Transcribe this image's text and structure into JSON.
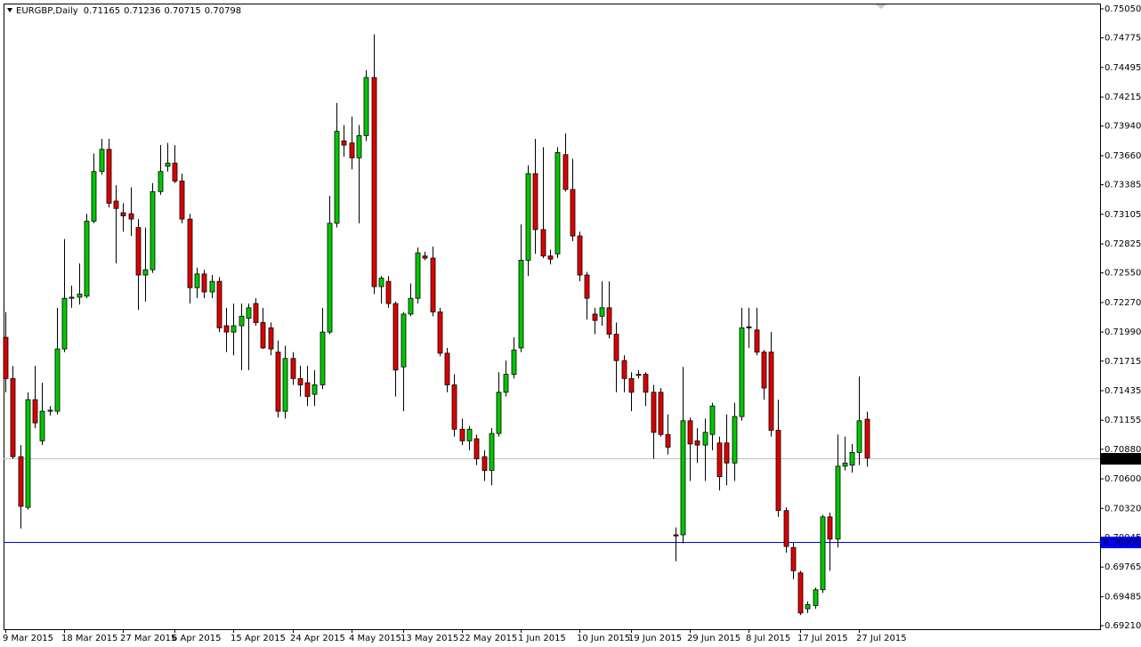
{
  "chart_data": {
    "type": "candlestick",
    "title": "EURGBP,Daily",
    "up_color": "#00c800",
    "down_color": "#dd0000",
    "categories": [
      "9 Mar 2015",
      null,
      null,
      null,
      null,
      null,
      null,
      null,
      "18 Mar 2015",
      null,
      null,
      null,
      null,
      null,
      null,
      null,
      "27 Mar 2015",
      null,
      null,
      null,
      null,
      null,
      null,
      "6 Apr 2015",
      null,
      null,
      null,
      null,
      null,
      null,
      null,
      "15 Apr 2015",
      null,
      null,
      null,
      null,
      null,
      null,
      null,
      "24 Apr 2015",
      null,
      null,
      null,
      null,
      null,
      null,
      null,
      "4 May 2015",
      null,
      null,
      null,
      null,
      null,
      null,
      "13 May 2015",
      null,
      null,
      null,
      null,
      null,
      null,
      null,
      "22 May 2015",
      null,
      null,
      null,
      null,
      null,
      null,
      null,
      "1 Jun 2015",
      null,
      null,
      null,
      null,
      null,
      null,
      null,
      "10 Jun 2015",
      null,
      null,
      null,
      null,
      null,
      null,
      "19 Jun 2015",
      null,
      null,
      null,
      null,
      null,
      null,
      null,
      "29 Jun 2015",
      null,
      null,
      null,
      null,
      null,
      null,
      null,
      "8 Jul 2015",
      null,
      null,
      null,
      null,
      null,
      null,
      "17 Jul 2015",
      null,
      null,
      null,
      null,
      null,
      null,
      null,
      "27 Jul 2015",
      null
    ],
    "open": [
      0.7194,
      0.7155,
      0.7081,
      0.7033,
      0.7135,
      0.7096,
      0.7124,
      0.7124,
      0.7183,
      0.7231,
      0.7232,
      0.7233,
      0.7304,
      0.7351,
      0.7372,
      0.7323,
      0.7312,
      0.7311,
      0.7298,
      0.7253,
      0.7258,
      0.7332,
      0.7356,
      0.7359,
      0.7342,
      0.7306,
      0.7241,
      0.7254,
      0.7237,
      0.7247,
      0.7205,
      0.7199,
      0.7205,
      0.7212,
      0.7226,
      0.7208,
      0.7203,
      0.718,
      0.7124,
      0.7174,
      0.7155,
      0.7151,
      0.714,
      0.7149,
      0.7199,
      0.7302,
      0.738,
      0.7378,
      0.7364,
      0.7385,
      0.744,
      0.7242,
      0.7247,
      0.7226,
      0.7166,
      0.7216,
      0.7231,
      0.7271,
      0.7269,
      0.7218,
      0.7179,
      0.7149,
      0.7107,
      0.7096,
      0.7098,
      0.7081,
      0.7068,
      0.7103,
      0.7142,
      0.7159,
      0.7184,
      0.7267,
      0.7349,
      0.7296,
      0.7271,
      0.7273,
      0.7367,
      0.7334,
      0.729,
      0.7253,
      0.7216,
      0.7214,
      0.7222,
      0.7197,
      0.7172,
      0.7155,
      0.7159,
      0.7159,
      0.7142,
      0.7142,
      0.7102,
      0.7007,
      0.7007,
      0.7115,
      0.7096,
      0.7092,
      0.7102,
      0.7094,
      0.7094,
      0.7075,
      0.7119,
      0.7204,
      0.7201,
      0.718,
      0.718,
      0.7106,
      0.703,
      0.6995,
      0.6971,
      0.6937,
      0.694,
      0.6955,
      0.7024,
      0.7003,
      0.7072,
      0.7073,
      0.7085,
      0.71165
    ],
    "high": [
      0.7218,
      0.7167,
      0.7092,
      0.7142,
      0.7167,
      0.7151,
      0.7129,
      0.7222,
      0.7287,
      0.7243,
      0.7264,
      0.7311,
      0.7368,
      0.7382,
      0.7382,
      0.7338,
      0.7321,
      0.7336,
      0.7306,
      0.7298,
      0.734,
      0.7376,
      0.7378,
      0.7376,
      0.7349,
      0.7311,
      0.726,
      0.7258,
      0.7253,
      0.7251,
      0.7222,
      0.7226,
      0.7226,
      0.7226,
      0.7231,
      0.7222,
      0.7208,
      0.7191,
      0.7186,
      0.718,
      0.7167,
      0.7167,
      0.7163,
      0.7222,
      0.7328,
      0.7416,
      0.7395,
      0.7403,
      0.7395,
      0.7447,
      0.7481,
      0.7252,
      0.7252,
      0.7228,
      0.7218,
      0.7245,
      0.7279,
      0.7275,
      0.728,
      0.7222,
      0.7184,
      0.7159,
      0.7117,
      0.711,
      0.7102,
      0.7087,
      0.7108,
      0.7161,
      0.7172,
      0.7194,
      0.7301,
      0.7357,
      0.7382,
      0.7374,
      0.7277,
      0.7374,
      0.7387,
      0.7363,
      0.7294,
      0.7256,
      0.7222,
      0.7247,
      0.7247,
      0.7208,
      0.7177,
      0.7161,
      0.7163,
      0.7161,
      0.7149,
      0.7146,
      0.7121,
      0.7014,
      0.7166,
      0.7118,
      0.7108,
      0.7117,
      0.7132,
      0.71,
      0.7121,
      0.7132,
      0.7222,
      0.7222,
      0.7222,
      0.7182,
      0.7199,
      0.7135,
      0.7033,
      0.7,
      0.6973,
      0.6944,
      0.6957,
      0.7026,
      0.7028,
      0.7102,
      0.71,
      0.7093,
      0.7157,
      0.71236
    ],
    "low": [
      0.7142,
      0.7079,
      0.7013,
      0.7031,
      0.7108,
      0.7092,
      0.712,
      0.7121,
      0.718,
      0.7222,
      0.7225,
      0.7231,
      0.7302,
      0.7348,
      0.7317,
      0.7264,
      0.7294,
      0.729,
      0.722,
      0.7228,
      0.7255,
      0.7329,
      0.7351,
      0.734,
      0.7302,
      0.7226,
      0.7231,
      0.7231,
      0.7231,
      0.7199,
      0.718,
      0.7177,
      0.7163,
      0.7163,
      0.7205,
      0.7183,
      0.7177,
      0.7118,
      0.7117,
      0.7149,
      0.7138,
      0.7129,
      0.7129,
      0.7145,
      0.7197,
      0.7298,
      0.7365,
      0.7353,
      0.7302,
      0.738,
      0.7235,
      0.7226,
      0.7222,
      0.7138,
      0.7124,
      0.7214,
      0.7226,
      0.7267,
      0.7214,
      0.7176,
      0.7142,
      0.71,
      0.7092,
      0.7087,
      0.7073,
      0.7058,
      0.7054,
      0.71,
      0.7138,
      0.7155,
      0.718,
      0.7252,
      0.7273,
      0.7269,
      0.7263,
      0.7269,
      0.7332,
      0.7285,
      0.7247,
      0.7211,
      0.7197,
      0.7205,
      0.7193,
      0.7142,
      0.7142,
      0.7124,
      0.7155,
      0.7129,
      0.7079,
      0.71,
      0.7083,
      0.6982,
      0.6999,
      0.7058,
      0.7075,
      0.7058,
      0.7087,
      0.7049,
      0.7054,
      0.7058,
      0.7115,
      0.7184,
      0.7177,
      0.7135,
      0.71,
      0.7024,
      0.699,
      0.6965,
      0.6931,
      0.6933,
      0.6937,
      0.6952,
      0.6973,
      0.6995,
      0.7068,
      0.7066,
      0.7073,
      0.70715
    ],
    "close": [
      0.7155,
      0.7081,
      0.7034,
      0.7135,
      0.7113,
      0.7124,
      0.7125,
      0.7183,
      0.7231,
      0.7232,
      0.7235,
      0.7304,
      0.7351,
      0.7372,
      0.7321,
      0.7316,
      0.7309,
      0.7306,
      0.7253,
      0.7258,
      0.7332,
      0.7351,
      0.7359,
      0.7342,
      0.7306,
      0.7241,
      0.7254,
      0.7237,
      0.7247,
      0.7203,
      0.7199,
      0.7205,
      0.7214,
      0.7222,
      0.7208,
      0.7184,
      0.7183,
      0.7124,
      0.7174,
      0.7155,
      0.7149,
      0.7138,
      0.7149,
      0.7199,
      0.7302,
      0.7389,
      0.7376,
      0.7364,
      0.7385,
      0.744,
      0.7242,
      0.725,
      0.7226,
      0.7163,
      0.7216,
      0.7231,
      0.7274,
      0.7269,
      0.7218,
      0.7179,
      0.7149,
      0.7107,
      0.7096,
      0.7107,
      0.7079,
      0.7068,
      0.7103,
      0.7142,
      0.7159,
      0.7182,
      0.7267,
      0.7349,
      0.7296,
      0.7271,
      0.7268,
      0.7369,
      0.7334,
      0.729,
      0.7253,
      0.7231,
      0.721,
      0.7222,
      0.7197,
      0.7172,
      0.7155,
      0.7142,
      0.7158,
      0.7142,
      0.7104,
      0.7102,
      0.709,
      0.7006,
      0.7115,
      0.7093,
      0.7092,
      0.7104,
      0.7129,
      0.7062,
      0.7075,
      0.7119,
      0.7203,
      0.7203,
      0.718,
      0.7146,
      0.7106,
      0.703,
      0.6996,
      0.6973,
      0.6933,
      0.6941,
      0.6955,
      0.7024,
      0.7003,
      0.7072,
      0.7075,
      0.7085,
      0.7115,
      0.70798
    ],
    "ylim": [
      0.69185,
      0.75134
    ],
    "yticks": [
      {
        "value": 0.7505,
        "label": "0.75050"
      },
      0.74775,
      0.74495,
      0.74215,
      {
        "value": 0.7394,
        "label": "0.73940"
      },
      {
        "value": 0.7366,
        "label": "0.73660"
      },
      0.73385,
      0.73105,
      0.72825,
      {
        "value": 0.7255,
        "label": "0.72550"
      },
      {
        "value": 0.7227,
        "label": "0.72270"
      },
      {
        "value": 0.7199,
        "label": "0.71990"
      },
      0.71715,
      0.71435,
      0.71155,
      {
        "value": 0.7088,
        "label": "0.70880"
      },
      {
        "value": 0.706,
        "label": "0.70600"
      },
      {
        "value": 0.7032,
        "label": "0.70320"
      },
      0.70045,
      0.69765,
      0.69485,
      {
        "value": 0.6921,
        "label": "0.69210"
      }
    ],
    "price_lines": [
      {
        "value": 0.70798,
        "color": "#c0c0c0",
        "label_background": "#000000"
      },
      {
        "value": 0.7,
        "label": "0.70000",
        "color": "#0000ff",
        "label_background": "#0000ff"
      }
    ]
  }
}
